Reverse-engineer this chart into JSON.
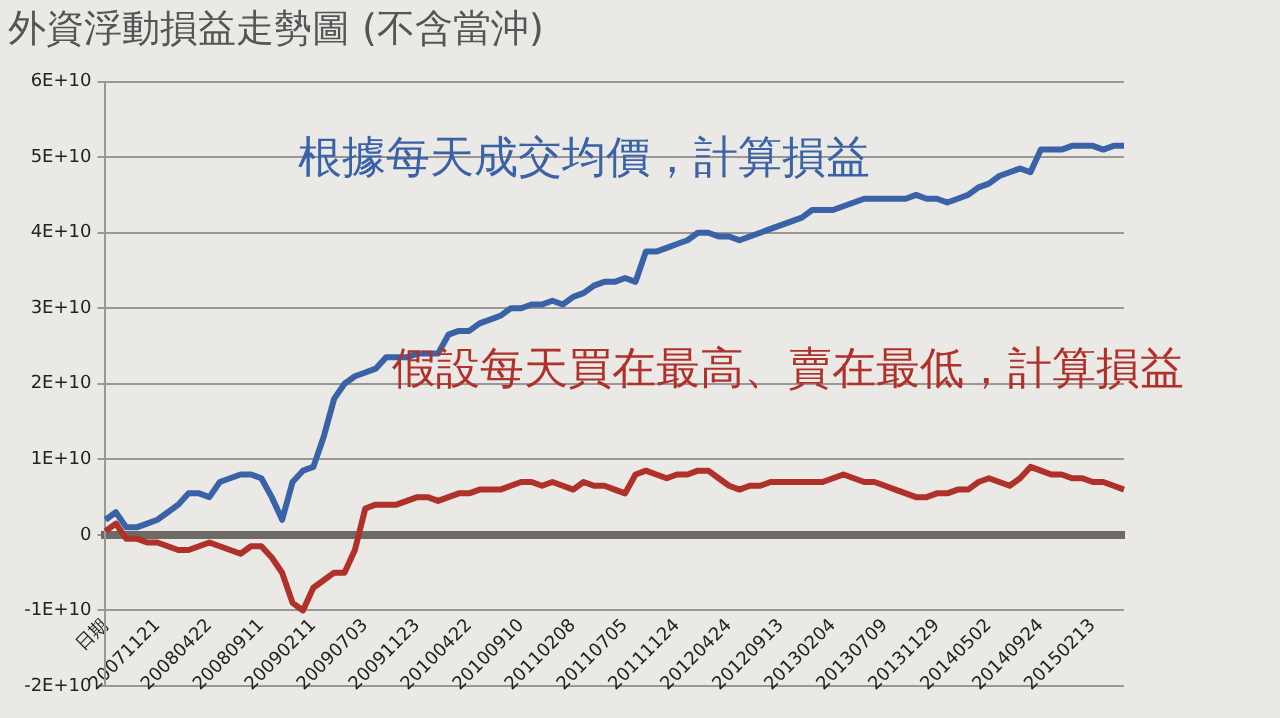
{
  "chart_data": {
    "type": "line",
    "title": "外資浮動損益走勢圖 (不含當沖)",
    "categories": [
      "日期",
      null,
      null,
      null,
      null,
      "20071121",
      null,
      null,
      null,
      null,
      "20080422",
      null,
      null,
      null,
      null,
      "20080911",
      null,
      null,
      null,
      null,
      "20090211",
      null,
      null,
      null,
      null,
      "20090703",
      null,
      null,
      null,
      null,
      "20091123",
      null,
      null,
      null,
      null,
      "20100422",
      null,
      null,
      null,
      null,
      "20100910",
      null,
      null,
      null,
      null,
      "20110208",
      null,
      null,
      null,
      null,
      "20110705",
      null,
      null,
      null,
      null,
      "20111124",
      null,
      null,
      null,
      null,
      "20120424",
      null,
      null,
      null,
      null,
      "20120913",
      null,
      null,
      null,
      null,
      "20130204",
      null,
      null,
      null,
      null,
      "20130709",
      null,
      null,
      null,
      null,
      "20131129",
      null,
      null,
      null,
      null,
      "20140502",
      null,
      null,
      null,
      null,
      "20140924",
      null,
      null,
      null,
      null,
      "20150213",
      null,
      null,
      null
    ],
    "series": [
      {
        "name": "根據每天成交均價，計算損益",
        "color": "#3a62a6",
        "values": [
          2000000000.0,
          3000000000.0,
          1000000000.0,
          1000000000.0,
          1500000000.0,
          2000000000.0,
          3000000000.0,
          4000000000.0,
          5500000000.0,
          5500000000.0,
          5000000000.0,
          7000000000.0,
          7500000000.0,
          8000000000.0,
          8000000000.0,
          7500000000.0,
          5000000000.0,
          2000000000.0,
          7000000000.0,
          8500000000.0,
          9000000000.0,
          13000000000.0,
          18000000000.0,
          20000000000.0,
          21000000000.0,
          21500000000.0,
          22000000000.0,
          23500000000.0,
          23500000000.0,
          23500000000.0,
          24000000000.0,
          24000000000.0,
          24000000000.0,
          26500000000.0,
          27000000000.0,
          27000000000.0,
          28000000000.0,
          28500000000.0,
          29000000000.0,
          30000000000.0,
          30000000000.0,
          30500000000.0,
          30500000000.0,
          31000000000.0,
          30500000000.0,
          31500000000.0,
          32000000000.0,
          33000000000.0,
          33500000000.0,
          33500000000.0,
          34000000000.0,
          33500000000.0,
          37500000000.0,
          37500000000.0,
          38000000000.0,
          38500000000.0,
          39000000000.0,
          40000000000.0,
          40000000000.0,
          39500000000.0,
          39500000000.0,
          39000000000.0,
          39500000000.0,
          40000000000.0,
          40500000000.0,
          41000000000.0,
          41500000000.0,
          42000000000.0,
          43000000000.0,
          43000000000.0,
          43000000000.0,
          43500000000.0,
          44000000000.0,
          44500000000.0,
          44500000000.0,
          44500000000.0,
          44500000000.0,
          44500000000.0,
          45000000000.0,
          44500000000.0,
          44500000000.0,
          44000000000.0,
          44500000000.0,
          45000000000.0,
          46000000000.0,
          46500000000.0,
          47500000000.0,
          48000000000.0,
          48500000000.0,
          48000000000.0,
          51000000000.0,
          51000000000.0,
          51000000000.0,
          51500000000.0,
          51500000000.0,
          51500000000.0,
          51000000000.0,
          51500000000.0,
          51500000000.0
        ]
      },
      {
        "name": "假設每天買在最高、賣在最低，計算損益",
        "color": "#b0302a",
        "values": [
          500000000.0,
          1500000000.0,
          -500000000.0,
          -500000000.0,
          -1000000000.0,
          -1000000000.0,
          -1500000000.0,
          -2000000000.0,
          -2000000000.0,
          -1500000000.0,
          -1000000000.0,
          -1500000000.0,
          -2000000000.0,
          -2500000000.0,
          -1500000000.0,
          -1500000000.0,
          -3000000000.0,
          -5000000000.0,
          -9000000000.0,
          -10000000000.0,
          -7000000000.0,
          -6000000000.0,
          -5000000000.0,
          -5000000000.0,
          -2000000000.0,
          3500000000.0,
          4000000000.0,
          4000000000.0,
          4000000000.0,
          4500000000.0,
          5000000000.0,
          5000000000.0,
          4500000000.0,
          5000000000.0,
          5500000000.0,
          5500000000.0,
          6000000000.0,
          6000000000.0,
          6000000000.0,
          6500000000.0,
          7000000000.0,
          7000000000.0,
          6500000000.0,
          7000000000.0,
          6500000000.0,
          6000000000.0,
          7000000000.0,
          6500000000.0,
          6500000000.0,
          6000000000.0,
          5500000000.0,
          8000000000.0,
          8500000000.0,
          8000000000.0,
          7500000000.0,
          8000000000.0,
          8000000000.0,
          8500000000.0,
          8500000000.0,
          7500000000.0,
          6500000000.0,
          6000000000.0,
          6500000000.0,
          6500000000.0,
          7000000000.0,
          7000000000.0,
          7000000000.0,
          7000000000.0,
          7000000000.0,
          7000000000.0,
          7500000000.0,
          8000000000.0,
          7500000000.0,
          7000000000.0,
          7000000000.0,
          6500000000.0,
          6000000000.0,
          5500000000.0,
          5000000000.0,
          5000000000.0,
          5500000000.0,
          5500000000.0,
          6000000000.0,
          6000000000.0,
          7000000000.0,
          7500000000.0,
          7000000000.0,
          6500000000.0,
          7500000000.0,
          9000000000.0,
          8500000000.0,
          8000000000.0,
          8000000000.0,
          7500000000.0,
          7500000000.0,
          7000000000.0,
          7000000000.0,
          6500000000.0,
          6000000000.0
        ]
      }
    ],
    "ylim": [
      -20000000000.0,
      60000000000.0
    ],
    "yticks": [
      {
        "value": -20000000000.0,
        "label": "-2E+10"
      },
      {
        "value": -10000000000.0,
        "label": "-1E+10"
      },
      0,
      {
        "value": 10000000000.0,
        "label": "1E+10"
      },
      {
        "value": 20000000000.0,
        "label": "2E+10"
      },
      {
        "value": 30000000000.0,
        "label": "3E+10"
      },
      {
        "value": 40000000000.0,
        "label": "4E+10"
      },
      {
        "value": 50000000000.0,
        "label": "5E+10"
      },
      {
        "value": 60000000000.0,
        "label": "6E+10"
      }
    ],
    "grid": "y",
    "legend": false,
    "marker": "none",
    "line_style": "solid"
  }
}
